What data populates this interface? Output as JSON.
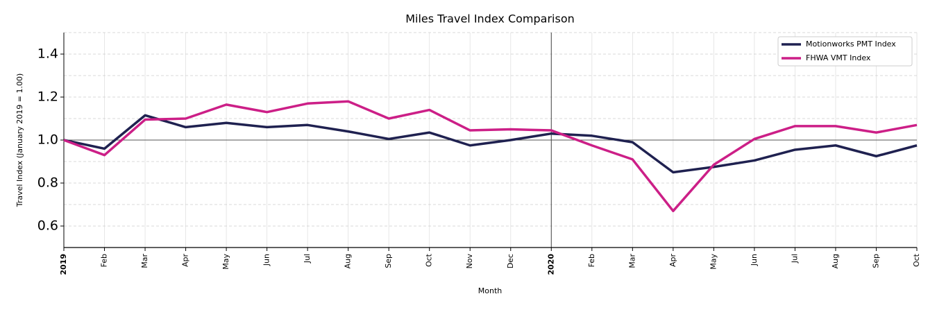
{
  "chart_data": {
    "type": "line",
    "title": "Miles Travel Index Comparison",
    "x_label": "Month",
    "y_label": "Travel Index (January 2019 = 1.00)",
    "categories": [
      "2019",
      "Feb",
      "Mar",
      "Apr",
      "May",
      "Jun",
      "Jul",
      "Aug",
      "Sep",
      "Oct",
      "Nov",
      "Dec",
      "2020",
      "Feb",
      "Mar",
      "Apr",
      "May",
      "Jun",
      "Jul",
      "Aug",
      "Sep",
      "Oct"
    ],
    "series": [
      {
        "name": "Motionworks PMT Index",
        "color": "#1f2150",
        "values": [
          1.0,
          0.96,
          1.115,
          1.06,
          1.08,
          1.06,
          1.07,
          1.04,
          1.005,
          1.035,
          0.975,
          1.0,
          1.03,
          1.02,
          0.99,
          0.85,
          0.875,
          0.905,
          0.955,
          0.975,
          0.925,
          0.975
        ]
      },
      {
        "name": "FHWA VMT Index",
        "color": "#cc1f87",
        "values": [
          1.0,
          0.93,
          1.095,
          1.1,
          1.165,
          1.13,
          1.17,
          1.18,
          1.1,
          1.14,
          1.045,
          1.05,
          1.045,
          0.975,
          0.91,
          0.67,
          0.885,
          1.005,
          1.065,
          1.065,
          1.035,
          1.07
        ]
      }
    ],
    "ylim": [
      0.5,
      1.5
    ],
    "yticks": [
      {
        "value": 0.6,
        "label": "0.6"
      },
      {
        "value": 0.8,
        "label": "0.8"
      },
      {
        "value": 1,
        "label": "1.0"
      },
      {
        "value": 1.2,
        "label": "1.2"
      },
      {
        "value": 1.4,
        "label": "1.4"
      }
    ],
    "minor_yticks": [
      0.5,
      0.7,
      0.9,
      1.1,
      1.3,
      1.5
    ],
    "reference_line": 1,
    "grid": true,
    "legend": "upper right"
  }
}
